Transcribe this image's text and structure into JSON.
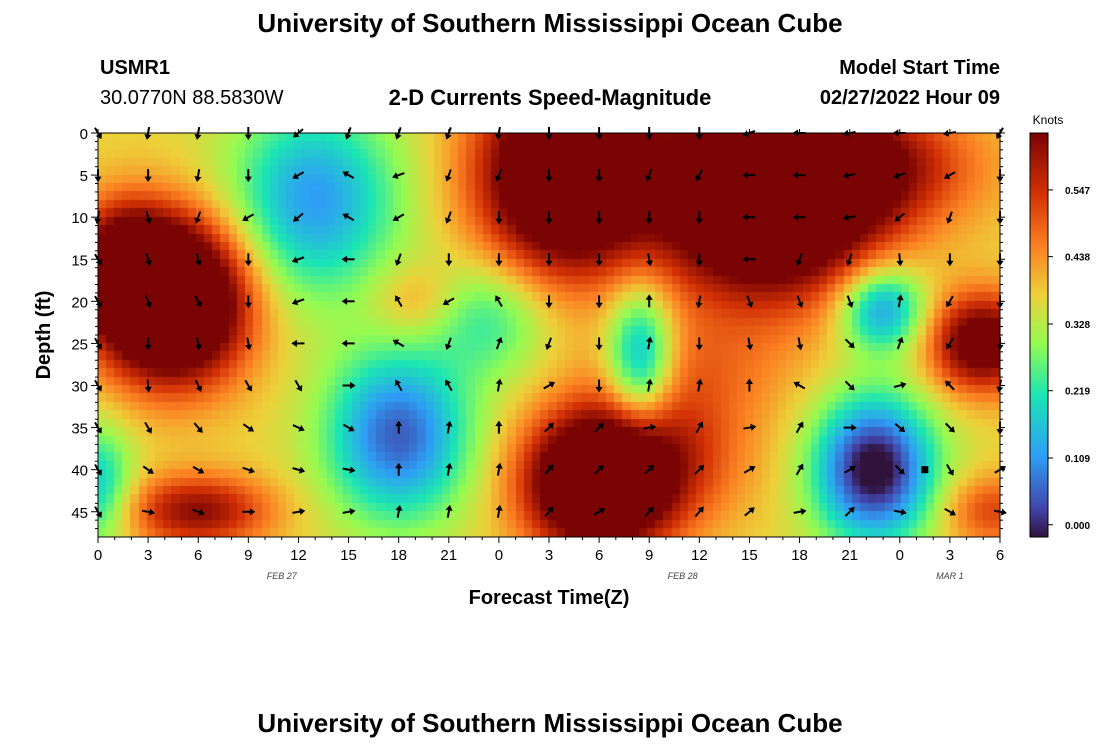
{
  "page": {
    "title": "University of Southern Mississippi Ocean Cube",
    "station_id": "USMR1",
    "coordinates": "30.0770N  88.5830W",
    "subtitle": "2-D Currents Speed-Magnitude",
    "model_start_label": "Model Start Time",
    "model_start_value": "02/27/2022 Hour 09",
    "footer_title": "University of Southern Mississippi Ocean Cube"
  },
  "chart_data": {
    "type": "heatmap",
    "title": "2-D Currents Speed-Magnitude",
    "xlabel": "Forecast Time(Z)",
    "ylabel": "Depth (ft)",
    "x_ticks": [
      "0",
      "3",
      "6",
      "9",
      "12",
      "15",
      "18",
      "21",
      "0",
      "3",
      "6",
      "9",
      "12",
      "15",
      "18",
      "21",
      "0",
      "3",
      "6"
    ],
    "x_range_hours": [
      0,
      54
    ],
    "date_labels": [
      {
        "label": "FEB 27",
        "hour": 11
      },
      {
        "label": "FEB 28",
        "hour": 35
      },
      {
        "label": "MAR 1",
        "hour": 51
      }
    ],
    "y_ticks": [
      0,
      5,
      10,
      15,
      20,
      25,
      30,
      35,
      40,
      45
    ],
    "y_range_ft": [
      0,
      48
    ],
    "colorbar": {
      "label": "Knots",
      "ticks": [
        "0.000",
        "0.109",
        "0.219",
        "0.328",
        "0.438",
        "0.547"
      ],
      "range": [
        -0.02,
        0.64
      ]
    },
    "speed_blobs_knots": [
      {
        "h": 4.5,
        "d": 20,
        "v": 0.6,
        "sh": 3.0,
        "sd": 6.5
      },
      {
        "h": 1.5,
        "d": 16,
        "v": 0.3,
        "sh": 2.0,
        "sd": 5.0
      },
      {
        "h": 6,
        "d": 45,
        "v": 0.25,
        "sh": 3.0,
        "sd": 3.0
      },
      {
        "h": 0,
        "d": 42,
        "v": -0.2,
        "sh": 1.5,
        "sd": 5.0
      },
      {
        "h": 13,
        "d": 8,
        "v": -0.26,
        "sh": 3.5,
        "sd": 8.0
      },
      {
        "h": 18,
        "d": 36,
        "v": -0.32,
        "sh": 3.0,
        "sd": 7.0
      },
      {
        "h": 19,
        "d": 20,
        "v": 0.08,
        "sh": 1.8,
        "sd": 3.0
      },
      {
        "h": 23.5,
        "d": 22,
        "v": -0.14,
        "sh": 2.5,
        "sd": 5.0
      },
      {
        "h": 28,
        "d": 5,
        "v": 0.52,
        "sh": 3.5,
        "sd": 8.0
      },
      {
        "h": 32.5,
        "d": 27,
        "v": -0.28,
        "sh": 1.4,
        "sd": 6.0
      },
      {
        "h": 30,
        "d": 42,
        "v": 0.48,
        "sh": 3.0,
        "sd": 5.5
      },
      {
        "h": 33,
        "d": 38,
        "v": 0.18,
        "sh": 4.0,
        "sd": 6.0
      },
      {
        "h": 36,
        "d": 28,
        "v": 0.08,
        "sh": 4.0,
        "sd": 5.0
      },
      {
        "h": 40,
        "d": 8,
        "v": 0.55,
        "sh": 4.5,
        "sd": 8.0
      },
      {
        "h": 45,
        "d": 4,
        "v": 0.25,
        "sh": 5.0,
        "sd": 5.0
      },
      {
        "h": 46.5,
        "d": 40,
        "v": -0.42,
        "sh": 2.5,
        "sd": 6.0
      },
      {
        "h": 47,
        "d": 21,
        "v": -0.27,
        "sh": 1.8,
        "sd": 3.5
      },
      {
        "h": 53,
        "d": 25,
        "v": 0.35,
        "sh": 2.2,
        "sd": 4.0
      },
      {
        "h": 53.5,
        "d": 45,
        "v": 0.15,
        "sh": 2.0,
        "sd": 3.0
      }
    ],
    "speed_baseline_knots": 0.37,
    "arrow_hours": [
      0,
      3,
      6,
      9,
      12,
      15,
      18,
      21,
      24,
      27,
      30,
      33,
      36,
      39,
      42,
      45,
      48,
      51,
      54
    ],
    "arrow_depths_ft": [
      0,
      5,
      10,
      15,
      20,
      25,
      30,
      35,
      40,
      45
    ],
    "arrow_directions_deg": [
      [
        150,
        180,
        190,
        150,
        150,
        150,
        150,
        150,
        150,
        150
      ],
      [
        190,
        180,
        165,
        165,
        160,
        180,
        175,
        150,
        125,
        100
      ],
      [
        190,
        190,
        200,
        165,
        150,
        170,
        155,
        140,
        120,
        110
      ],
      [
        180,
        180,
        240,
        180,
        180,
        170,
        150,
        125,
        110,
        90
      ],
      [
        230,
        240,
        230,
        250,
        250,
        270,
        150,
        115,
        105,
        80
      ],
      [
        200,
        300,
        300,
        270,
        270,
        270,
        90,
        120,
        100,
        80
      ],
      [
        200,
        250,
        240,
        200,
        330,
        300,
        330,
        0,
        0,
        10
      ],
      [
        200,
        200,
        200,
        180,
        240,
        200,
        330,
        10,
        10,
        10
      ],
      [
        190,
        200,
        180,
        180,
        330,
        20,
        10,
        0,
        10,
        10
      ],
      [
        180,
        180,
        180,
        180,
        180,
        200,
        60,
        45,
        40,
        40
      ],
      [
        180,
        180,
        180,
        180,
        180,
        180,
        180,
        45,
        45,
        60
      ],
      [
        180,
        200,
        180,
        170,
        0,
        10,
        10,
        80,
        45,
        40
      ],
      [
        180,
        210,
        180,
        180,
        190,
        180,
        10,
        30,
        45,
        40
      ],
      [
        250,
        270,
        270,
        270,
        160,
        170,
        0,
        80,
        60,
        50
      ],
      [
        270,
        270,
        270,
        200,
        160,
        170,
        300,
        30,
        30,
        80
      ],
      [
        260,
        260,
        260,
        200,
        160,
        135,
        135,
        90,
        60,
        45
      ],
      [
        270,
        250,
        230,
        175,
        10,
        20,
        75,
        130,
        135,
        100
      ],
      [
        260,
        240,
        200,
        180,
        210,
        210,
        315,
        135,
        150,
        120
      ],
      [
        210,
        180,
        180,
        180,
        180,
        180,
        190,
        180,
        60,
        100
      ]
    ],
    "marker_point": {
      "hour": 49.5,
      "depth_ft": 40
    }
  }
}
